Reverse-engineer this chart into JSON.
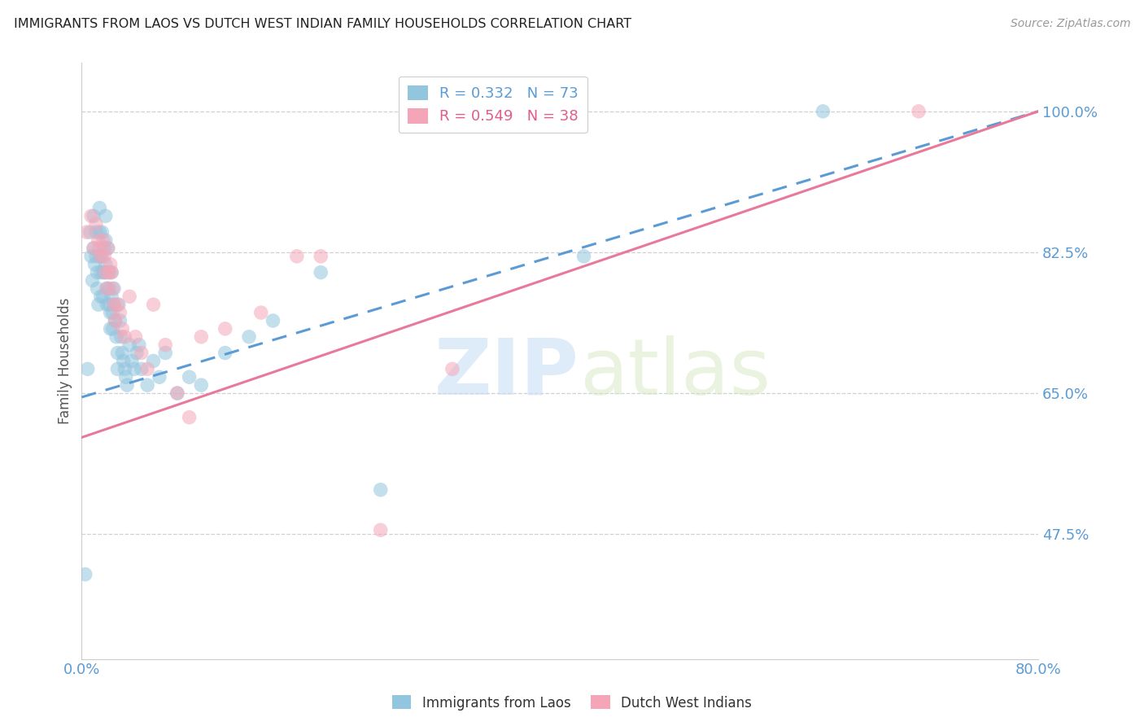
{
  "title": "IMMIGRANTS FROM LAOS VS DUTCH WEST INDIAN FAMILY HOUSEHOLDS CORRELATION CHART",
  "source": "Source: ZipAtlas.com",
  "ylabel": "Family Households",
  "xlim": [
    0.0,
    0.8
  ],
  "ylim": [
    0.32,
    1.06
  ],
  "yticks": [
    0.475,
    0.65,
    0.825,
    1.0
  ],
  "ytick_labels": [
    "47.5%",
    "65.0%",
    "82.5%",
    "100.0%"
  ],
  "xticks": [
    0.0,
    0.16,
    0.32,
    0.48,
    0.64,
    0.8
  ],
  "xtick_labels": [
    "0.0%",
    "",
    "",
    "",
    "",
    "80.0%"
  ],
  "blue_R": 0.332,
  "blue_N": 73,
  "pink_R": 0.549,
  "pink_N": 38,
  "blue_color": "#92c5de",
  "pink_color": "#f4a6b8",
  "blue_line_color": "#5b9bd5",
  "pink_line_color": "#e8799a",
  "legend_blue_label": "Immigrants from Laos",
  "legend_pink_label": "Dutch West Indians",
  "blue_x": [
    0.003,
    0.005,
    0.007,
    0.008,
    0.009,
    0.01,
    0.01,
    0.011,
    0.012,
    0.012,
    0.013,
    0.013,
    0.014,
    0.015,
    0.015,
    0.015,
    0.016,
    0.016,
    0.017,
    0.017,
    0.018,
    0.018,
    0.019,
    0.019,
    0.02,
    0.02,
    0.02,
    0.021,
    0.021,
    0.022,
    0.022,
    0.023,
    0.023,
    0.024,
    0.024,
    0.025,
    0.025,
    0.026,
    0.026,
    0.027,
    0.027,
    0.028,
    0.029,
    0.03,
    0.03,
    0.031,
    0.032,
    0.033,
    0.034,
    0.035,
    0.036,
    0.037,
    0.038,
    0.04,
    0.042,
    0.044,
    0.046,
    0.048,
    0.05,
    0.055,
    0.06,
    0.065,
    0.07,
    0.08,
    0.09,
    0.1,
    0.12,
    0.14,
    0.16,
    0.2,
    0.25,
    0.42,
    0.62
  ],
  "blue_y": [
    0.425,
    0.68,
    0.85,
    0.82,
    0.79,
    0.87,
    0.83,
    0.81,
    0.85,
    0.82,
    0.8,
    0.78,
    0.76,
    0.88,
    0.85,
    0.82,
    0.8,
    0.77,
    0.85,
    0.82,
    0.8,
    0.77,
    0.83,
    0.8,
    0.87,
    0.84,
    0.81,
    0.78,
    0.76,
    0.83,
    0.8,
    0.78,
    0.76,
    0.75,
    0.73,
    0.8,
    0.77,
    0.75,
    0.73,
    0.78,
    0.76,
    0.74,
    0.72,
    0.7,
    0.68,
    0.76,
    0.74,
    0.72,
    0.7,
    0.69,
    0.68,
    0.67,
    0.66,
    0.71,
    0.69,
    0.68,
    0.7,
    0.71,
    0.68,
    0.66,
    0.69,
    0.67,
    0.7,
    0.65,
    0.67,
    0.66,
    0.7,
    0.72,
    0.74,
    0.8,
    0.53,
    0.82,
    1.0
  ],
  "pink_x": [
    0.004,
    0.008,
    0.01,
    0.012,
    0.014,
    0.015,
    0.016,
    0.018,
    0.019,
    0.02,
    0.021,
    0.022,
    0.023,
    0.024,
    0.025,
    0.026,
    0.027,
    0.028,
    0.03,
    0.032,
    0.034,
    0.036,
    0.04,
    0.045,
    0.05,
    0.055,
    0.06,
    0.07,
    0.08,
    0.09,
    0.1,
    0.12,
    0.15,
    0.18,
    0.2,
    0.25,
    0.31,
    0.7
  ],
  "pink_y": [
    0.85,
    0.87,
    0.83,
    0.86,
    0.84,
    0.83,
    0.82,
    0.84,
    0.82,
    0.8,
    0.78,
    0.83,
    0.8,
    0.81,
    0.8,
    0.78,
    0.76,
    0.74,
    0.76,
    0.75,
    0.73,
    0.72,
    0.77,
    0.72,
    0.7,
    0.68,
    0.76,
    0.71,
    0.65,
    0.62,
    0.72,
    0.73,
    0.75,
    0.82,
    0.82,
    0.48,
    0.68,
    1.0
  ],
  "watermark_zip": "ZIP",
  "watermark_atlas": "atlas",
  "background_color": "#ffffff",
  "grid_color": "#d0d0d0"
}
